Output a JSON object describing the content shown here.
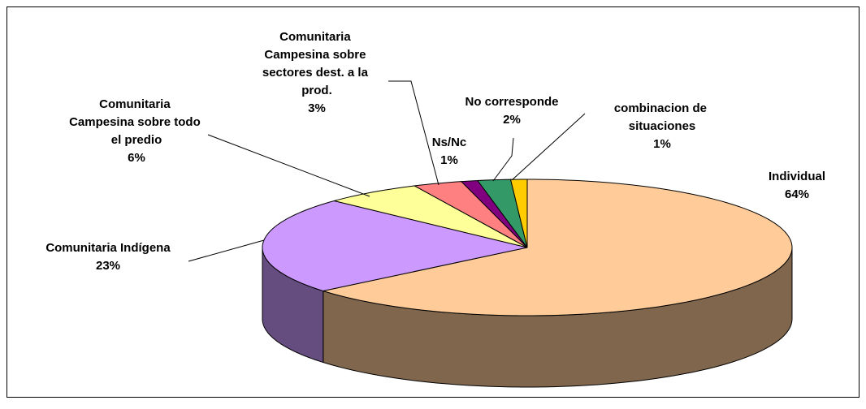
{
  "chart_data": {
    "type": "pie3d",
    "categories": [
      "Individual",
      "Comunitaria Indígena",
      "Comunitaria Campesina sobre todo el predio",
      "Comunitaria Campesina sobre sectores dest. a la prod.",
      "Ns/Nc",
      "No corresponde",
      "combinacion de situaciones"
    ],
    "values": [
      64,
      23,
      6,
      3,
      1,
      2,
      1
    ],
    "value_labels": [
      "64%",
      "23%",
      "6%",
      "3%",
      "1%",
      "2%",
      "1%"
    ],
    "colors": [
      "#FFCC99",
      "#CC99FF",
      "#FFFF99",
      "#FF8080",
      "#800080",
      "#339966",
      "#FFCC00"
    ]
  }
}
